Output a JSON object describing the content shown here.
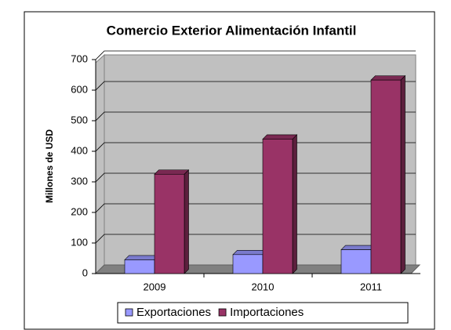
{
  "chart_data": {
    "type": "bar",
    "title": "Comercio Exterior Alimentación Infantil",
    "y_label": "Millones de USD",
    "categories": [
      "2009",
      "2010",
      "2011"
    ],
    "series": [
      {
        "name": "Exportaciones",
        "color": "#9999ff",
        "values": [
          45,
          62,
          78
        ]
      },
      {
        "name": "Importaciones",
        "color": "#993366",
        "values": [
          325,
          440,
          633
        ]
      }
    ],
    "ylim": [
      0,
      700
    ],
    "yticks": [
      0,
      100,
      200,
      300,
      400,
      500,
      600,
      700
    ],
    "grid": true,
    "legend": "bottom"
  }
}
